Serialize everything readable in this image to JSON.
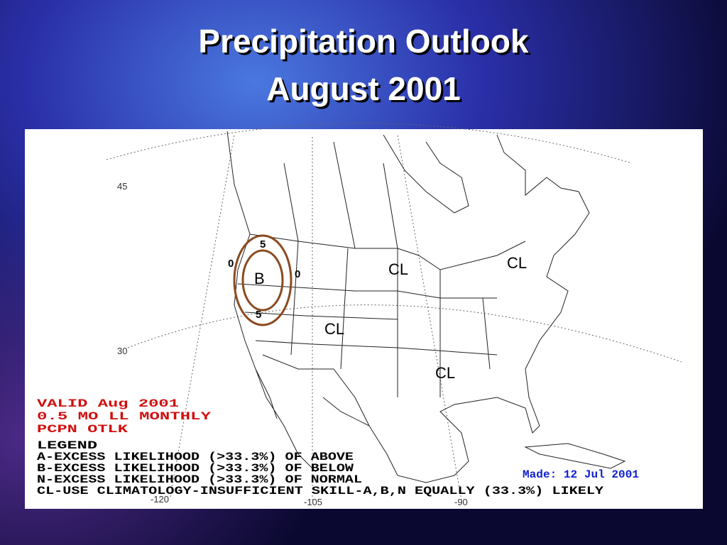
{
  "header": {
    "title_lines": [
      "Precipitation Outlook",
      "August 2001"
    ]
  },
  "map": {
    "lat_labels": [
      "45",
      "30"
    ],
    "lon_labels": [
      "-120",
      "-105",
      "-90"
    ],
    "region_labels": [
      "CL",
      "CL",
      "CL",
      "CL",
      "B"
    ],
    "contour_labels": [
      "5",
      "0",
      "0",
      "5"
    ],
    "info_lines": [
      "VALID Aug 2001",
      "0.5 MO LL MONTHLY",
      "PCPN OTLK"
    ],
    "legend_lines": [
      "LEGEND",
      "A-EXCESS LIKELIHOOD (>33.3%) OF ABOVE",
      "B-EXCESS LIKELIHOOD (>33.3%) OF BELOW",
      "N-EXCESS LIKELIHOOD (>33.3%) OF NORMAL",
      "CL-USE CLIMATOLOGY-INSUFFICIENT SKILL-A,B,N EQUALLY (33.3%) LIKELY"
    ],
    "made_date": "Made: 12 Jul 2001"
  }
}
